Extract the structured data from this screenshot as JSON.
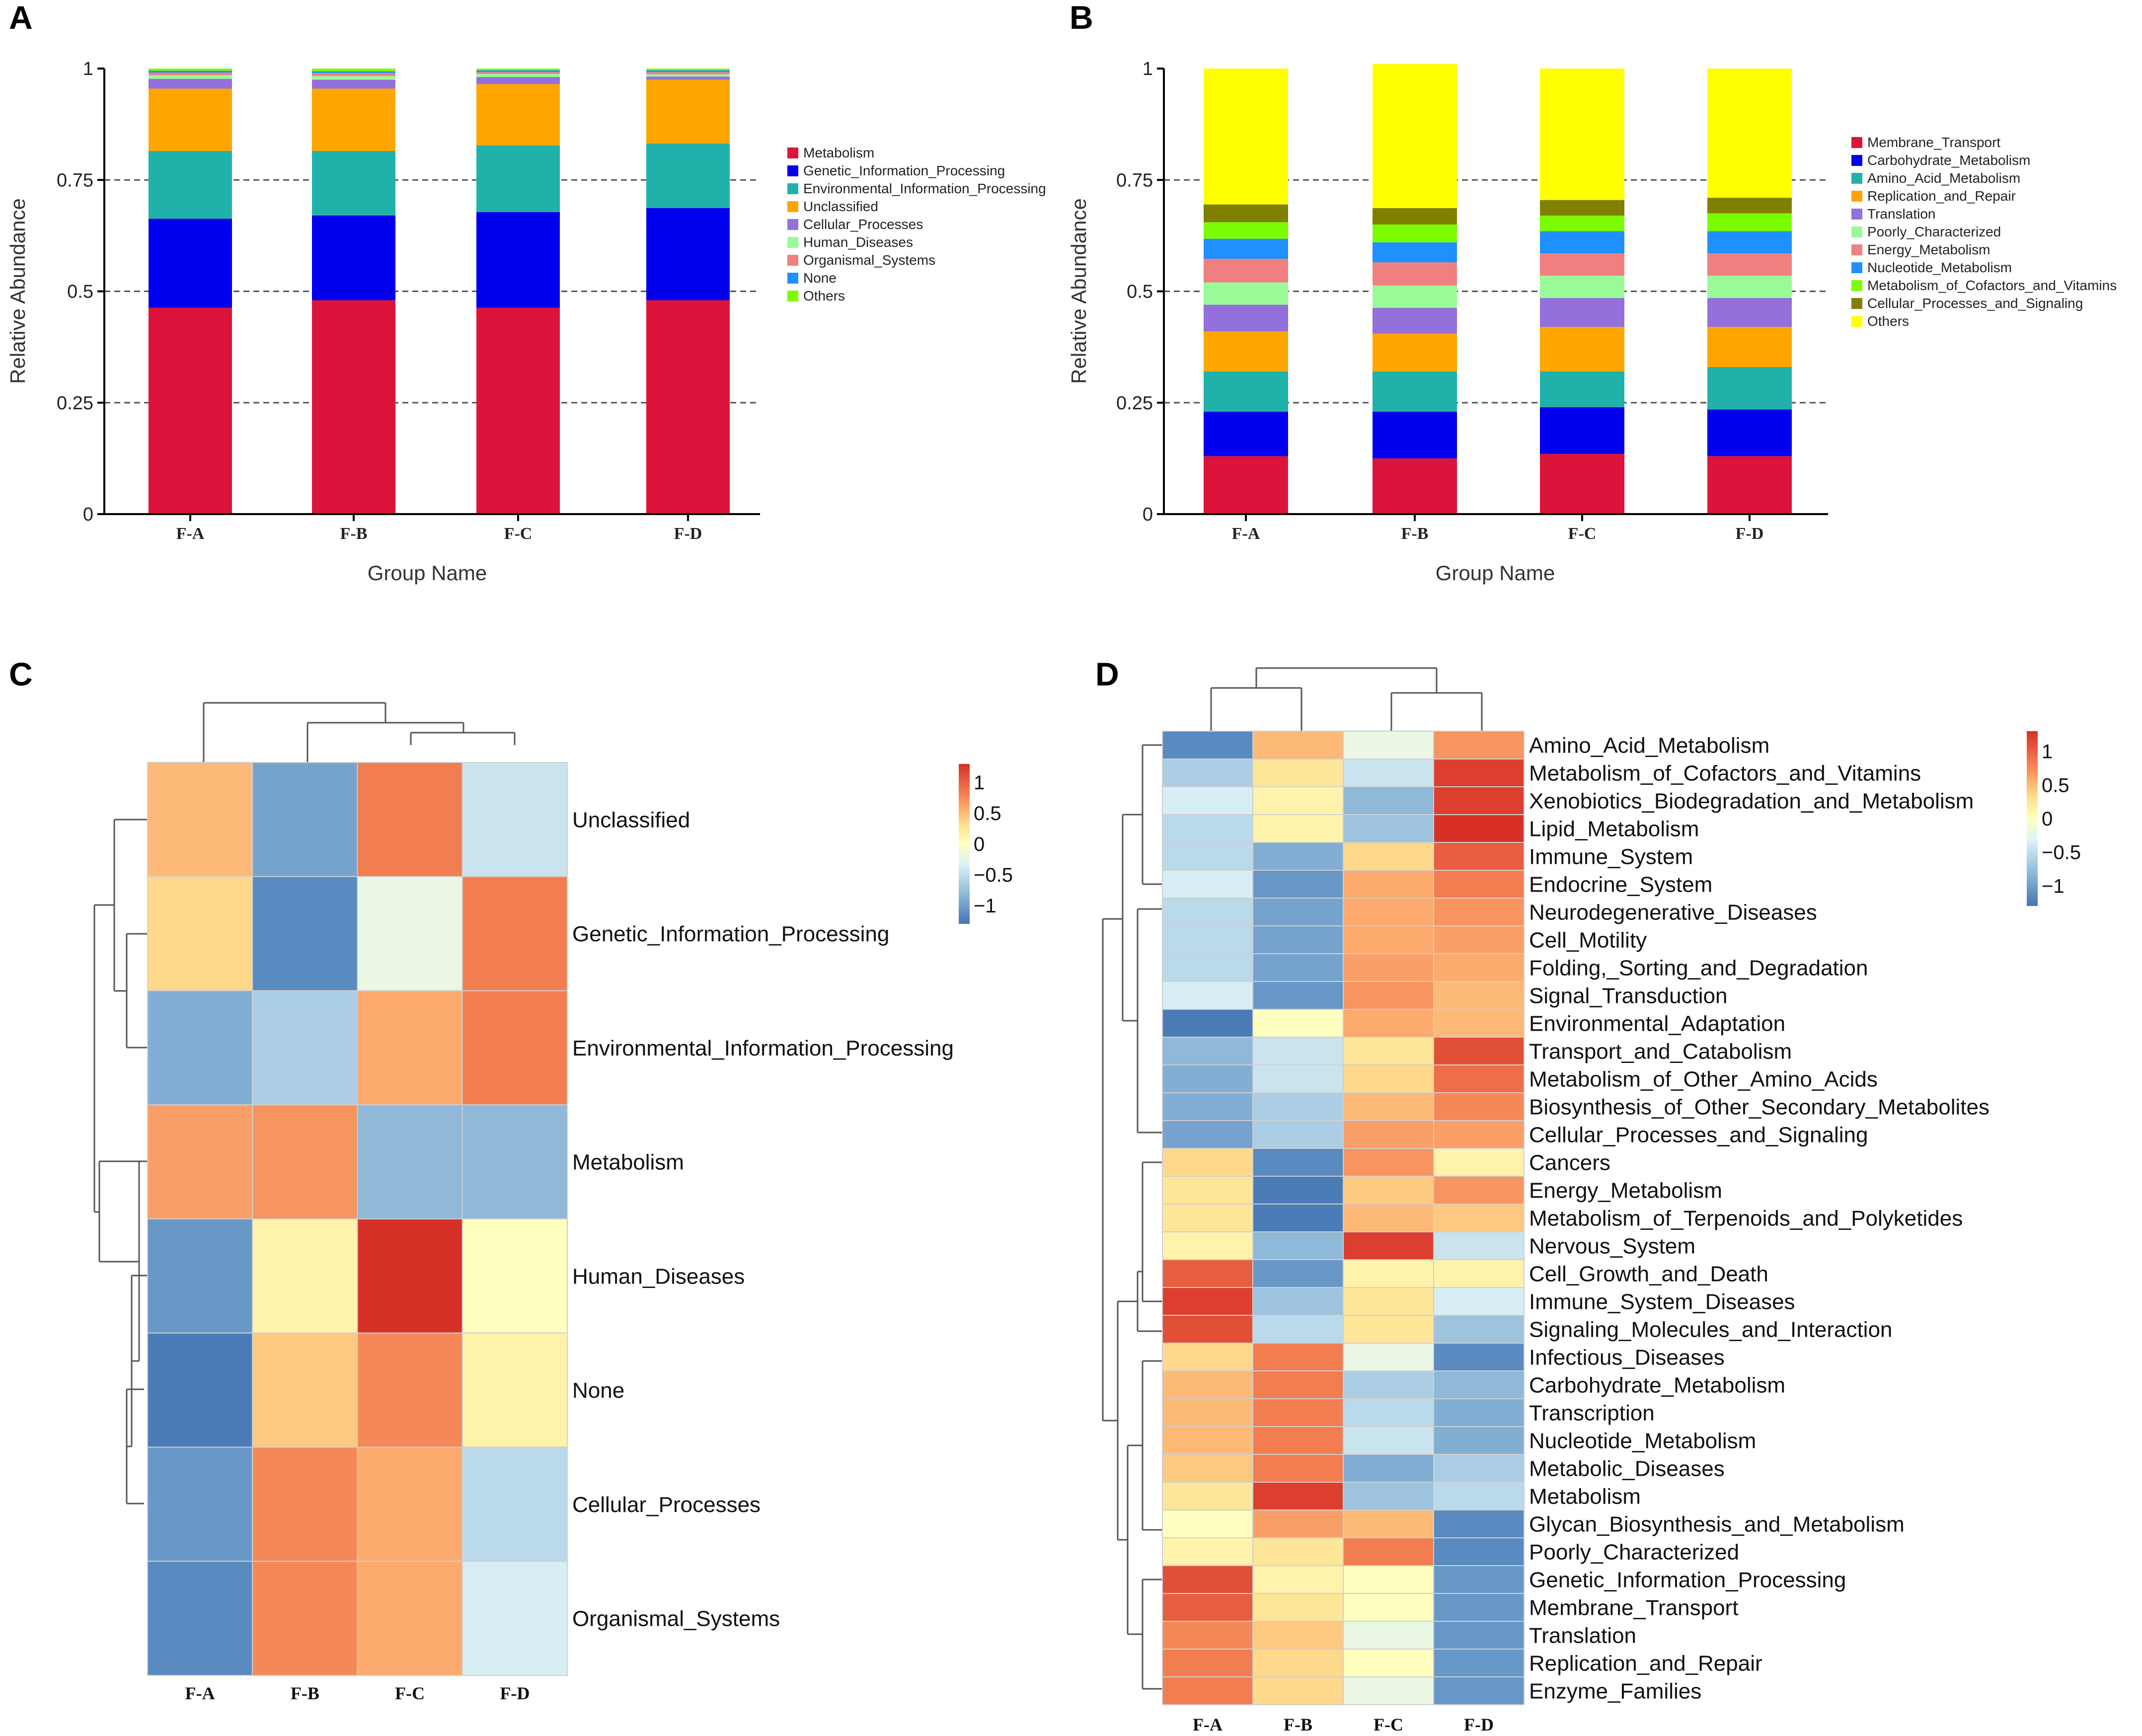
{
  "chart_data": [
    {
      "panel": "A",
      "type": "bar",
      "stacked": true,
      "xlabel": "Group Name",
      "ylabel": "Relative Abundance",
      "ylim": [
        0,
        1
      ],
      "yticks": [
        "0",
        "0.25",
        "0.5",
        "0.75",
        "1"
      ],
      "categories": [
        "F-A",
        "F-B",
        "F-C",
        "F-D"
      ],
      "series": [
        {
          "name": "Metabolism",
          "color": "#dc143c",
          "values": [
            0.463,
            0.48,
            0.463,
            0.48
          ]
        },
        {
          "name": "Genetic_Information_Processing",
          "color": "#0000ee",
          "values": [
            0.2,
            0.19,
            0.215,
            0.207
          ]
        },
        {
          "name": "Environmental_Information_Processing",
          "color": "#20b2aa",
          "values": [
            0.152,
            0.145,
            0.15,
            0.145
          ]
        },
        {
          "name": "Unclassified",
          "color": "#ffa500",
          "values": [
            0.14,
            0.14,
            0.137,
            0.143
          ]
        },
        {
          "name": "Cellular_Processes",
          "color": "#9370db",
          "values": [
            0.022,
            0.02,
            0.016,
            0.007
          ]
        },
        {
          "name": "Human_Diseases",
          "color": "#98fb98",
          "values": [
            0.008,
            0.008,
            0.007,
            0.005
          ]
        },
        {
          "name": "Organismal_Systems",
          "color": "#f08080",
          "values": [
            0.006,
            0.007,
            0.004,
            0.005
          ]
        },
        {
          "name": "None",
          "color": "#1e90ff",
          "values": [
            0.004,
            0.004,
            0.004,
            0.004
          ]
        },
        {
          "name": "Others",
          "color": "#7cfc00",
          "values": [
            0.005,
            0.006,
            0.004,
            0.004
          ]
        }
      ]
    },
    {
      "panel": "B",
      "type": "bar",
      "stacked": true,
      "xlabel": "Group Name",
      "ylabel": "Relative Abundance",
      "ylim": [
        0,
        1
      ],
      "yticks": [
        "0",
        "0.25",
        "0.5",
        "0.75",
        "1"
      ],
      "categories": [
        "F-A",
        "F-B",
        "F-C",
        "F-D"
      ],
      "series": [
        {
          "name": "Membrane_Transport",
          "color": "#dc143c",
          "values": [
            0.13,
            0.125,
            0.135,
            0.13
          ]
        },
        {
          "name": "Carbohydrate_Metabolism",
          "color": "#0000ee",
          "values": [
            0.1,
            0.105,
            0.105,
            0.105
          ]
        },
        {
          "name": "Amino_Acid_Metabolism",
          "color": "#20b2aa",
          "values": [
            0.09,
            0.09,
            0.08,
            0.095
          ]
        },
        {
          "name": "Replication_and_Repair",
          "color": "#ffa500",
          "values": [
            0.09,
            0.085,
            0.1,
            0.09
          ]
        },
        {
          "name": "Translation",
          "color": "#9370db",
          "values": [
            0.06,
            0.058,
            0.065,
            0.065
          ]
        },
        {
          "name": "Poorly_Characterized",
          "color": "#98fb98",
          "values": [
            0.05,
            0.05,
            0.05,
            0.05
          ]
        },
        {
          "name": "Energy_Metabolism",
          "color": "#f08080",
          "values": [
            0.053,
            0.052,
            0.05,
            0.05
          ]
        },
        {
          "name": "Nucleotide_Metabolism",
          "color": "#1e90ff",
          "values": [
            0.045,
            0.045,
            0.05,
            0.05
          ]
        },
        {
          "name": "Metabolism_of_Cofactors_and_Vitamins",
          "color": "#7cfc00",
          "values": [
            0.037,
            0.04,
            0.035,
            0.04
          ]
        },
        {
          "name": "Cellular_Processes_and_Signaling",
          "color": "#808000",
          "values": [
            0.04,
            0.037,
            0.035,
            0.035
          ]
        },
        {
          "name": "Others",
          "color": "#ffff00",
          "values": [
            0.305,
            0.323,
            0.295,
            0.29
          ]
        }
      ]
    },
    {
      "panel": "C",
      "type": "heatmap",
      "columns": [
        "F-A",
        "F-B",
        "F-C",
        "F-D"
      ],
      "rows": [
        "Unclassified",
        "Genetic_Information_Processing",
        "Environmental_Information_Processing",
        "Metabolism",
        "Human_Diseases",
        "None",
        "Cellular_Processes",
        "Organismal_Systems"
      ],
      "values": [
        [
          0.5,
          -0.9,
          1.0,
          -0.3
        ],
        [
          0.3,
          -1.2,
          -0.1,
          1.0
        ],
        [
          -0.8,
          -0.5,
          0.6,
          1.0
        ],
        [
          0.7,
          0.8,
          -0.7,
          -0.7
        ],
        [
          -1.0,
          0.1,
          1.5,
          0.0
        ],
        [
          -1.4,
          0.4,
          0.9,
          0.1
        ],
        [
          -1.0,
          0.9,
          0.6,
          -0.4
        ],
        [
          -1.2,
          0.9,
          0.6,
          -0.2
        ]
      ],
      "colorbar": {
        "ticks": [
          "1",
          "0.5",
          "0",
          "−0.5",
          "−1"
        ]
      }
    },
    {
      "panel": "D",
      "type": "heatmap",
      "columns": [
        "F-A",
        "F-B",
        "F-C",
        "F-D"
      ],
      "rows": [
        "Amino_Acid_Metabolism",
        "Metabolism_of_Cofactors_and_Vitamins",
        "Xenobiotics_Biodegradation_and_Metabolism",
        "Lipid_Metabolism",
        "Immune_System",
        "Endocrine_System",
        "Neurodegenerative_Diseases",
        "Cell_Motility",
        "Folding,_Sorting_and_Degradation",
        "Signal_Transduction",
        "Environmental_Adaptation",
        "Transport_and_Catabolism",
        "Metabolism_of_Other_Amino_Acids",
        "Biosynthesis_of_Other_Secondary_Metabolites",
        "Cellular_Processes_and_Signaling",
        "Cancers",
        "Energy_Metabolism",
        "Metabolism_of_Terpenoids_and_Polyketides",
        "Nervous_System",
        "Cell_Growth_and_Death",
        "Immune_System_Diseases",
        "Signaling_Molecules_and_Interaction",
        "Infectious_Diseases",
        "Carbohydrate_Metabolism",
        "Transcription",
        "Nucleotide_Metabolism",
        "Metabolic_Diseases",
        "Metabolism",
        "Glycan_Biosynthesis_and_Metabolism",
        "Poorly_Characterized",
        "Genetic_Information_Processing",
        "Membrane_Transport",
        "Translation",
        "Replication_and_Repair",
        "Enzyme_Families"
      ],
      "values": [
        [
          -1.2,
          0.5,
          -0.1,
          0.8
        ],
        [
          -0.5,
          0.2,
          -0.3,
          1.4
        ],
        [
          -0.2,
          0.1,
          -0.7,
          1.4
        ],
        [
          -0.4,
          0.1,
          -0.6,
          1.5
        ],
        [
          -0.4,
          -0.8,
          0.3,
          1.2
        ],
        [
          -0.2,
          -1.0,
          0.6,
          1.0
        ],
        [
          -0.4,
          -0.9,
          0.6,
          0.8
        ],
        [
          -0.4,
          -0.9,
          0.6,
          0.7
        ],
        [
          -0.4,
          -0.9,
          0.7,
          0.6
        ],
        [
          -0.2,
          -1.0,
          0.8,
          0.5
        ],
        [
          -1.4,
          0.0,
          0.6,
          0.5
        ],
        [
          -0.7,
          -0.3,
          0.2,
          1.3
        ],
        [
          -0.8,
          -0.3,
          0.3,
          1.1
        ],
        [
          -0.8,
          -0.5,
          0.5,
          0.9
        ],
        [
          -0.9,
          -0.5,
          0.7,
          0.7
        ],
        [
          0.3,
          -1.2,
          0.8,
          0.1
        ],
        [
          0.2,
          -1.4,
          0.4,
          0.8
        ],
        [
          0.2,
          -1.4,
          0.5,
          0.4
        ],
        [
          0.1,
          -0.7,
          1.4,
          -0.3
        ],
        [
          1.2,
          -1.0,
          0.1,
          0.1
        ],
        [
          1.4,
          -0.6,
          0.2,
          -0.2
        ],
        [
          1.3,
          -0.4,
          0.2,
          -0.6
        ],
        [
          0.3,
          1.0,
          -0.1,
          -1.2
        ],
        [
          0.5,
          1.0,
          -0.5,
          -0.7
        ],
        [
          0.5,
          1.0,
          -0.4,
          -0.8
        ],
        [
          0.5,
          1.0,
          -0.3,
          -0.8
        ],
        [
          0.4,
          1.0,
          -0.8,
          -0.5
        ],
        [
          0.2,
          1.4,
          -0.6,
          -0.4
        ],
        [
          0.0,
          0.7,
          0.5,
          -1.2
        ],
        [
          0.1,
          0.2,
          1.0,
          -1.2
        ],
        [
          1.3,
          0.1,
          0.0,
          -1.0
        ],
        [
          1.2,
          0.2,
          0.0,
          -1.0
        ],
        [
          0.9,
          0.4,
          -0.1,
          -1.0
        ],
        [
          1.0,
          0.3,
          0.0,
          -1.0
        ],
        [
          1.0,
          0.3,
          -0.1,
          -1.0
        ]
      ],
      "colorbar": {
        "ticks": [
          "1",
          "0.5",
          "0",
          "−0.5",
          "−1"
        ]
      }
    }
  ],
  "panel_labels": [
    "A",
    "B",
    "C",
    "D"
  ]
}
